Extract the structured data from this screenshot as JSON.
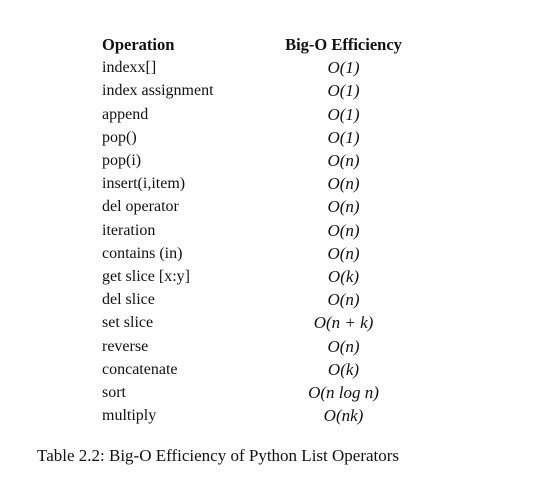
{
  "table": {
    "headers": {
      "operation": "Operation",
      "efficiency": "Big-O Efficiency"
    },
    "rows": [
      {
        "operation": "indexx[]",
        "efficiency": "O(1)"
      },
      {
        "operation": "index assignment",
        "efficiency": "O(1)"
      },
      {
        "operation": "append",
        "efficiency": "O(1)"
      },
      {
        "operation": "pop()",
        "efficiency": "O(1)"
      },
      {
        "operation": "pop(i)",
        "efficiency": "O(n)"
      },
      {
        "operation": "insert(i,item)",
        "efficiency": "O(n)"
      },
      {
        "operation": "del operator",
        "efficiency": "O(n)"
      },
      {
        "operation": "iteration",
        "efficiency": "O(n)"
      },
      {
        "operation": "contains (in)",
        "efficiency": "O(n)"
      },
      {
        "operation": "get slice [x:y]",
        "efficiency": "O(k)"
      },
      {
        "operation": "del slice",
        "efficiency": "O(n)"
      },
      {
        "operation": "set slice",
        "efficiency": "O(n + k)"
      },
      {
        "operation": "reverse",
        "efficiency": "O(n)"
      },
      {
        "operation": "concatenate",
        "efficiency": "O(k)"
      },
      {
        "operation": "sort",
        "efficiency": "O(n log n)"
      },
      {
        "operation": "multiply",
        "efficiency": "O(nk)"
      }
    ]
  },
  "caption": "Table 2.2: Big-O Efficiency of Python List Operators"
}
